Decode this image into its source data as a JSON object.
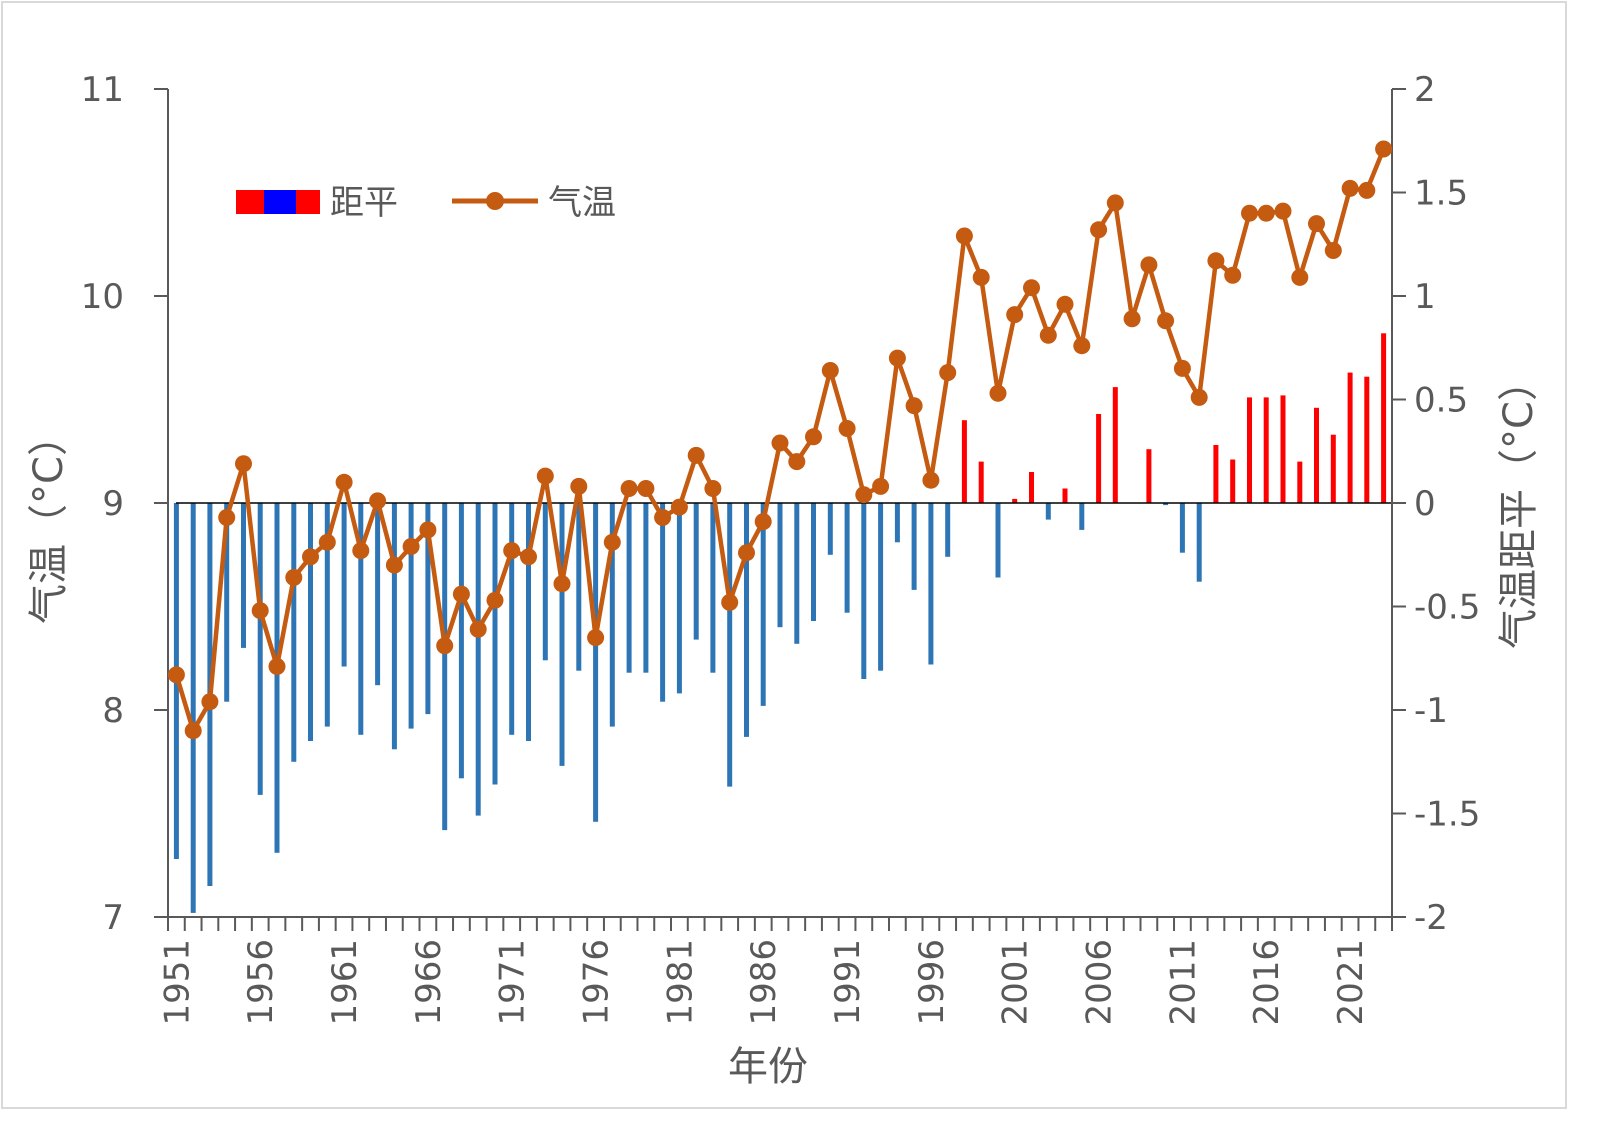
{
  "chart_data": {
    "type": "bar+line",
    "xlabel": "年份",
    "ylabel_left": "气温（°C）",
    "ylabel_right": "气温距平（°C）",
    "ylim_left": [
      7,
      11
    ],
    "ylim_right": [
      -2,
      2
    ],
    "yticks_left": [
      "7",
      "8",
      "9",
      "10",
      "11"
    ],
    "yticks_right": [
      "-2",
      "-1.5",
      "-1",
      "-0.5",
      "0",
      "0.5",
      "1",
      "1.5",
      "2"
    ],
    "xtick_labels": [
      "1951",
      "1956",
      "1961",
      "1966",
      "1971",
      "1976",
      "1981",
      "1986",
      "1991",
      "1996",
      "2001",
      "2006",
      "2011",
      "2016",
      "2021"
    ],
    "legend": {
      "anomaly_label": "距平",
      "temperature_label": "气温",
      "position": "top-left"
    },
    "colors": {
      "positive_bar": "#ff0000",
      "negative_bar": "#2e75b6",
      "line": "#c55a11",
      "legend_blue": "#0000ff"
    },
    "years": [
      1951,
      1952,
      1953,
      1954,
      1955,
      1956,
      1957,
      1958,
      1959,
      1960,
      1961,
      1962,
      1963,
      1964,
      1965,
      1966,
      1967,
      1968,
      1969,
      1970,
      1971,
      1972,
      1973,
      1974,
      1975,
      1976,
      1977,
      1978,
      1979,
      1980,
      1981,
      1982,
      1983,
      1984,
      1985,
      1986,
      1987,
      1988,
      1989,
      1990,
      1991,
      1992,
      1993,
      1994,
      1995,
      1996,
      1997,
      1998,
      1999,
      2000,
      2001,
      2002,
      2003,
      2004,
      2005,
      2006,
      2007,
      2008,
      2009,
      2010,
      2011,
      2012,
      2013,
      2014,
      2015,
      2016,
      2017,
      2018,
      2019,
      2020,
      2021,
      2022,
      2023
    ],
    "series": [
      {
        "name": "距平",
        "type": "bar",
        "axis": "right",
        "values": [
          -1.72,
          -1.98,
          -1.85,
          -0.96,
          -0.7,
          -1.41,
          -1.69,
          -1.25,
          -1.15,
          -1.08,
          -0.79,
          -1.12,
          -0.88,
          -1.19,
          -1.09,
          -1.02,
          -1.58,
          -1.33,
          -1.51,
          -1.36,
          -1.12,
          -1.15,
          -0.76,
          -1.27,
          -0.81,
          -1.54,
          -1.08,
          -0.82,
          -0.82,
          -0.96,
          -0.92,
          -0.66,
          -0.82,
          -1.37,
          -1.13,
          -0.98,
          -0.6,
          -0.68,
          -0.57,
          -0.25,
          -0.53,
          -0.85,
          -0.81,
          -0.19,
          -0.42,
          -0.78,
          -0.26,
          0.4,
          0.2,
          -0.36,
          0.02,
          0.15,
          -0.08,
          0.07,
          -0.13,
          0.43,
          0.56,
          0.0,
          0.26,
          -0.01,
          -0.24,
          -0.38,
          0.28,
          0.21,
          0.51,
          0.51,
          0.52,
          0.2,
          0.46,
          0.33,
          0.63,
          0.61,
          0.82
        ]
      },
      {
        "name": "气温",
        "type": "line",
        "axis": "left",
        "values": [
          8.17,
          7.9,
          8.04,
          8.93,
          9.19,
          8.48,
          8.21,
          8.64,
          8.74,
          8.81,
          9.1,
          8.77,
          9.01,
          8.7,
          8.79,
          8.87,
          8.31,
          8.56,
          8.39,
          8.53,
          8.77,
          8.74,
          9.13,
          8.61,
          9.08,
          8.35,
          8.81,
          9.07,
          9.07,
          8.93,
          8.98,
          9.23,
          9.07,
          8.52,
          8.76,
          8.91,
          9.29,
          9.2,
          9.32,
          9.64,
          9.36,
          9.04,
          9.08,
          9.7,
          9.47,
          9.11,
          9.63,
          10.29,
          10.09,
          9.53,
          9.91,
          10.04,
          9.81,
          9.96,
          9.76,
          10.32,
          10.45,
          9.89,
          10.15,
          9.88,
          9.65,
          9.51,
          10.17,
          10.1,
          10.4,
          10.4,
          10.41,
          10.09,
          10.35,
          10.22,
          10.52,
          10.51,
          10.71
        ]
      }
    ]
  }
}
